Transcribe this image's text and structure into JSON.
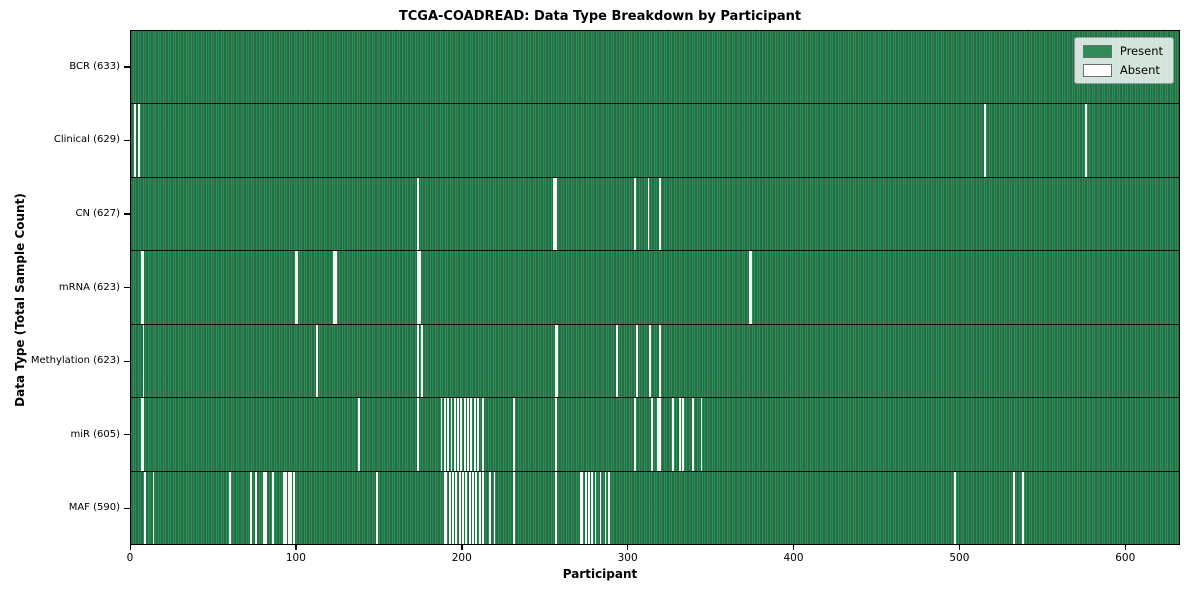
{
  "chart_data": {
    "type": "heatmap",
    "title": "TCGA-COADREAD: Data Type Breakdown by Participant",
    "xlabel": "Participant",
    "ylabel": "Data Type (Total Sample Count)",
    "x_ticks": [
      0,
      100,
      200,
      300,
      400,
      500,
      600
    ],
    "x_range": [
      0,
      633
    ],
    "participants_total": 633,
    "grid": false,
    "colors": {
      "present": "#2e8b57",
      "present_edge": "#0a2a18",
      "absent": "#f7f7f7"
    },
    "legend": {
      "position": "upper right",
      "entries": [
        {
          "label": "Present",
          "color": "#2e8b57"
        },
        {
          "label": "Absent",
          "color": "#ffffff"
        }
      ]
    },
    "rows": [
      {
        "name": "BCR",
        "label": "BCR (633)",
        "total": 633,
        "absent_participants": []
      },
      {
        "name": "Clinical",
        "label": "Clinical (629)",
        "total": 629,
        "absent_participants": [
          2,
          4,
          515,
          576
        ]
      },
      {
        "name": "CN",
        "label": "CN (627)",
        "total": 627,
        "absent_participants": [
          173,
          255,
          256,
          304,
          312,
          319
        ]
      },
      {
        "name": "mRNA",
        "label": "mRNA (623)",
        "total": 623,
        "absent_participants": [
          6,
          7,
          99,
          100,
          122,
          123,
          173,
          174,
          373,
          374
        ]
      },
      {
        "name": "Methylation",
        "label": "Methylation (623)",
        "total": 623,
        "absent_participants": [
          7,
          112,
          173,
          175,
          256,
          257,
          293,
          305,
          313,
          319
        ]
      },
      {
        "name": "miR",
        "label": "miR (605)",
        "total": 605,
        "absent_participants": [
          6,
          7,
          137,
          173,
          187,
          189,
          191,
          193,
          195,
          197,
          199,
          201,
          203,
          205,
          207,
          209,
          212,
          231,
          256,
          304,
          314,
          318,
          319,
          327,
          331,
          333,
          339,
          344
        ]
      },
      {
        "name": "MAF",
        "label": "MAF (590)",
        "total": 590,
        "absent_participants": [
          8,
          13,
          59,
          72,
          75,
          80,
          81,
          85,
          92,
          93,
          95,
          96,
          98,
          148,
          189,
          190,
          192,
          194,
          196,
          198,
          200,
          202,
          204,
          206,
          208,
          210,
          212,
          216,
          219,
          231,
          256,
          271,
          272,
          274,
          276,
          278,
          280,
          283,
          286,
          288,
          497,
          533,
          538
        ]
      }
    ]
  }
}
